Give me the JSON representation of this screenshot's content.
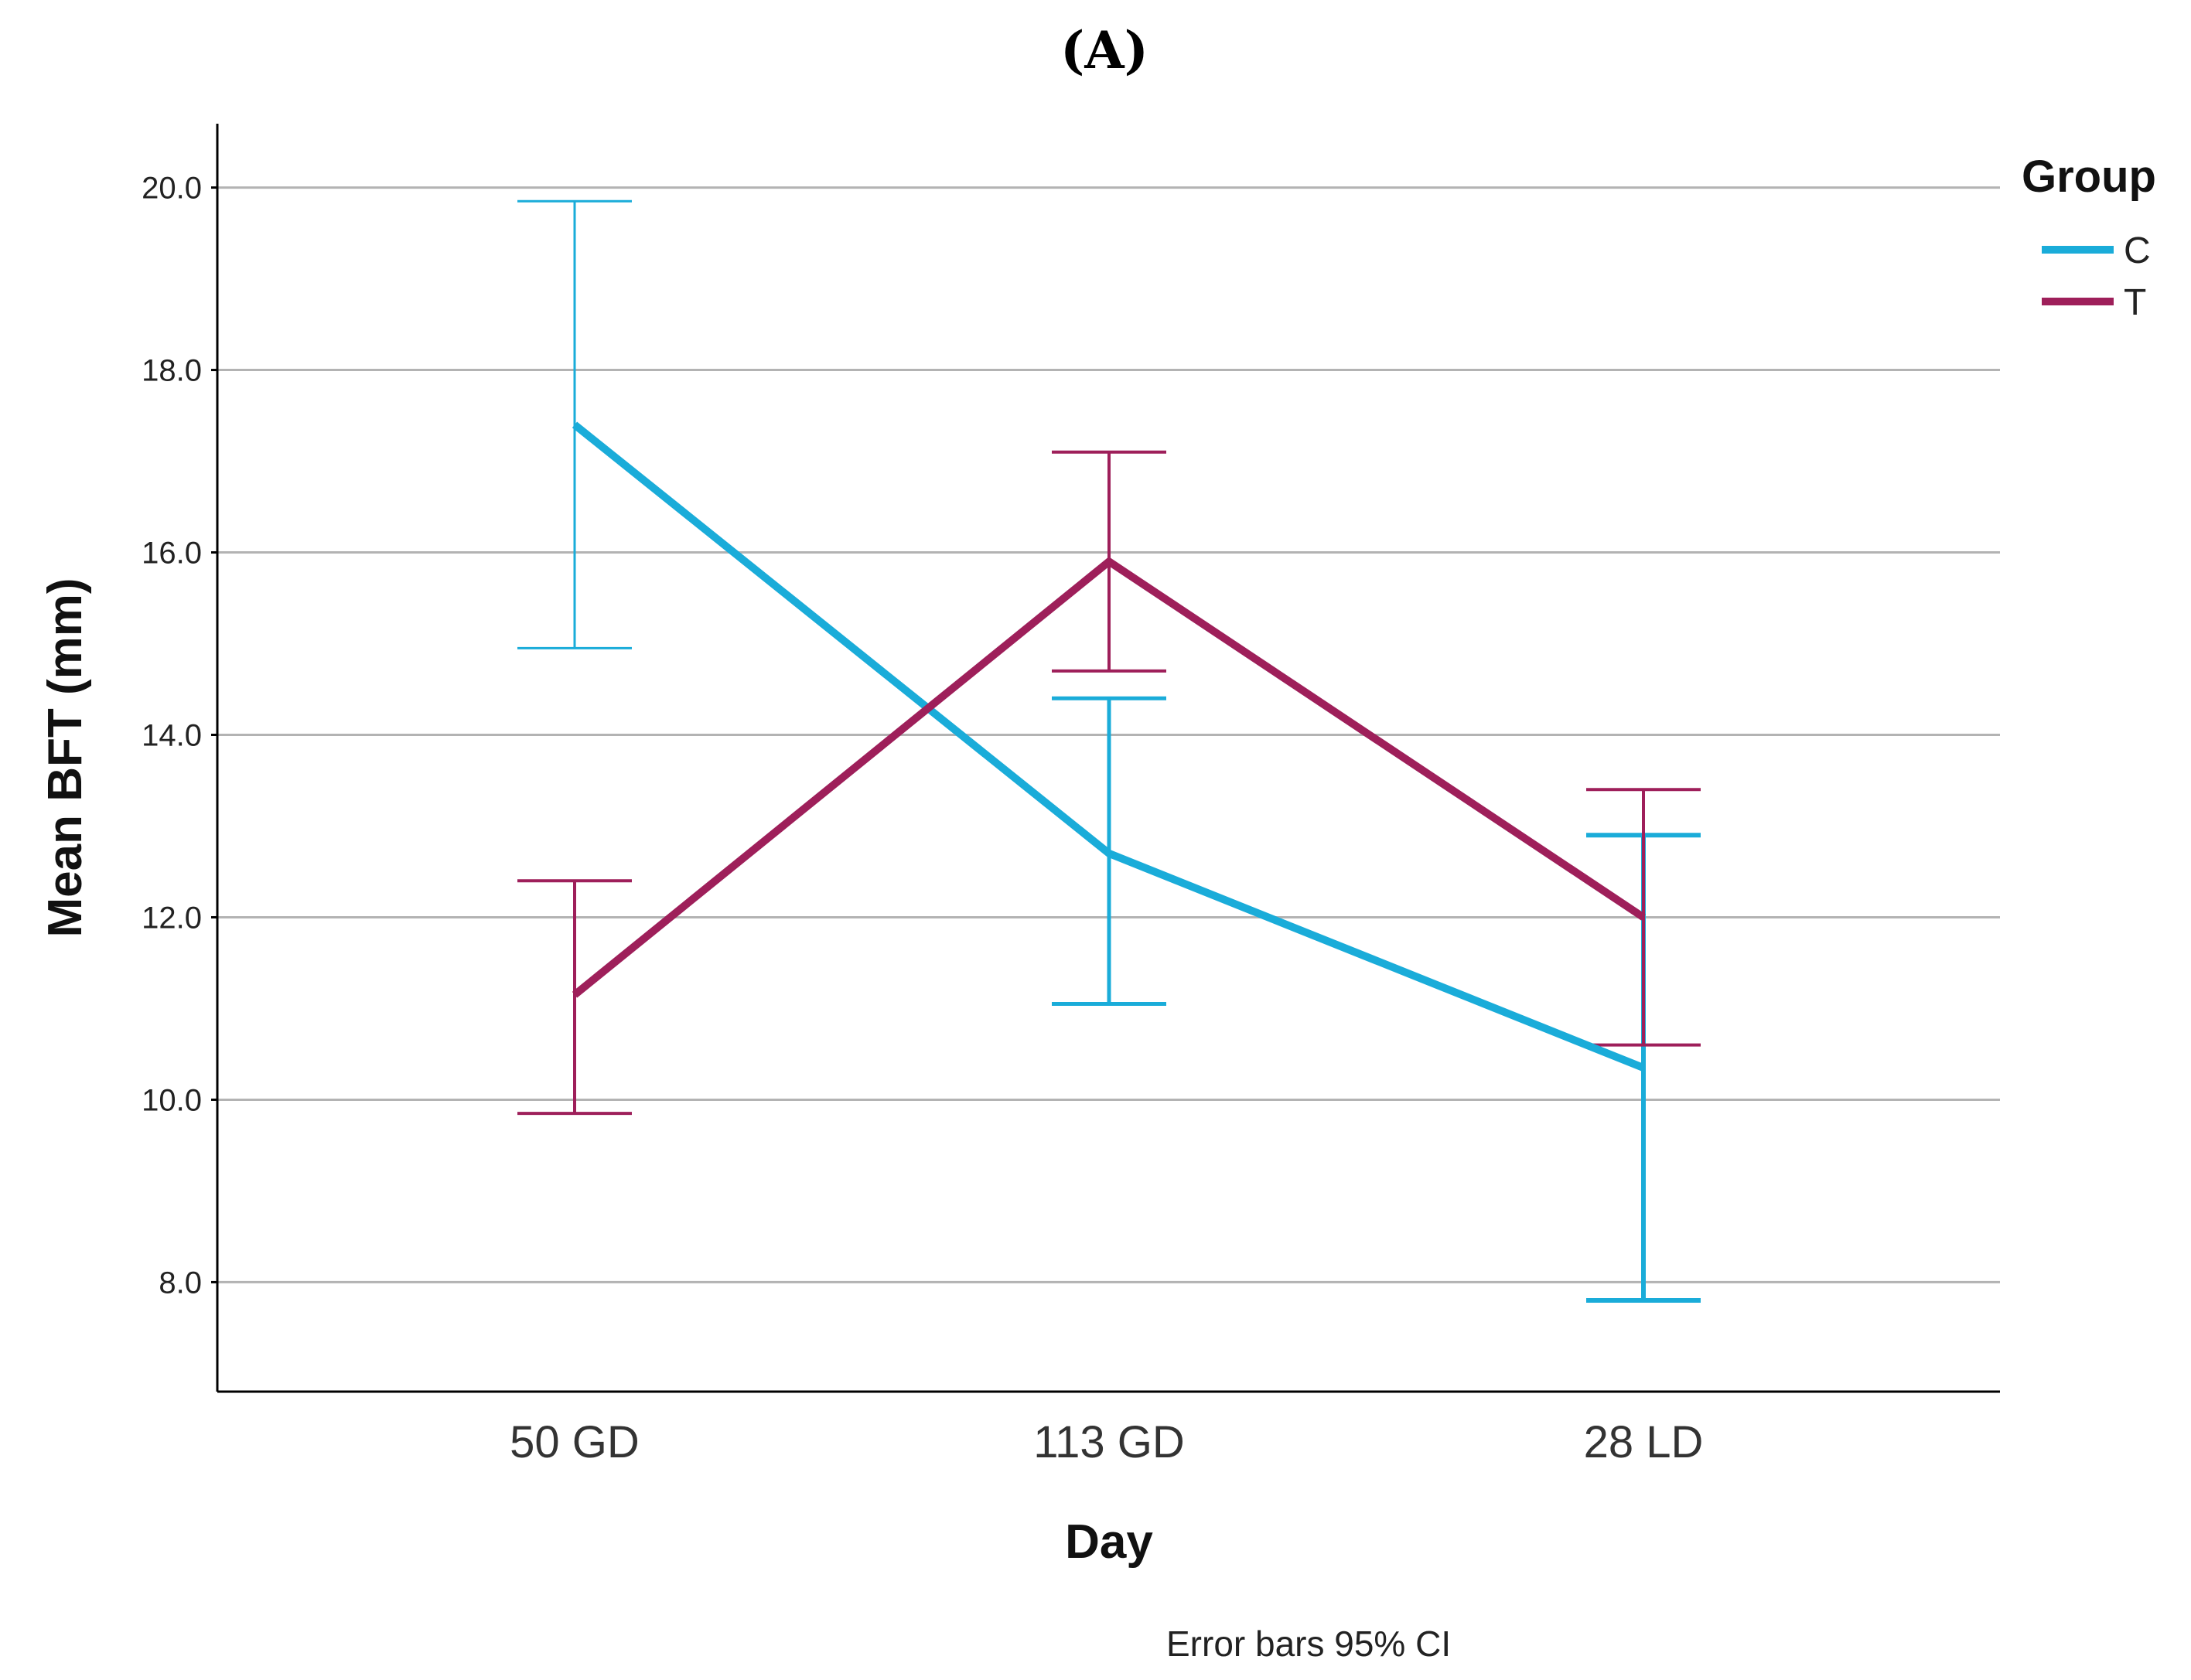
{
  "panel_label": "(A)",
  "chart_data": {
    "type": "line",
    "title": "",
    "xlabel": "Day",
    "ylabel": "Mean BFT (mm)",
    "categories": [
      "50 GD",
      "113 GD",
      "28 LD"
    ],
    "ylim": [
      6.8,
      20.7
    ],
    "yticks": [
      8.0,
      10.0,
      12.0,
      14.0,
      16.0,
      18.0,
      20.0
    ],
    "ytick_labels": [
      "8.0",
      "10.0",
      "12.0",
      "14.0",
      "16.0",
      "18.0",
      "20.0"
    ],
    "grid": true,
    "legend": {
      "title": "Group",
      "position": "top-right"
    },
    "series": [
      {
        "name": "C",
        "color": "#1AACD9",
        "values": [
          17.4,
          12.7,
          10.35
        ],
        "ci_low": [
          14.95,
          11.05,
          7.8
        ],
        "ci_high": [
          19.85,
          14.4,
          12.9
        ]
      },
      {
        "name": "T",
        "color": "#9E1F5A",
        "values": [
          11.15,
          15.9,
          12.0
        ],
        "ci_low": [
          9.85,
          14.7,
          10.6
        ],
        "ci_high": [
          12.4,
          17.1,
          13.4
        ]
      }
    ],
    "annotation": "Error bars 95% CI"
  }
}
